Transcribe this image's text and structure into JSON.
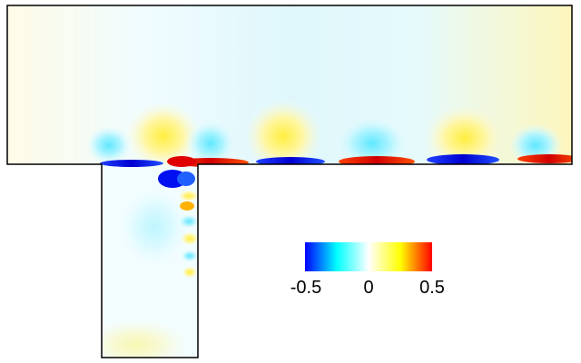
{
  "colorbar": {
    "min_label": "-0.5",
    "mid_label": "0",
    "max_label": "0.5",
    "stops": [
      "#0000ff",
      "#00ffff",
      "#ffffff",
      "#ffff00",
      "#ff0000"
    ]
  }
}
